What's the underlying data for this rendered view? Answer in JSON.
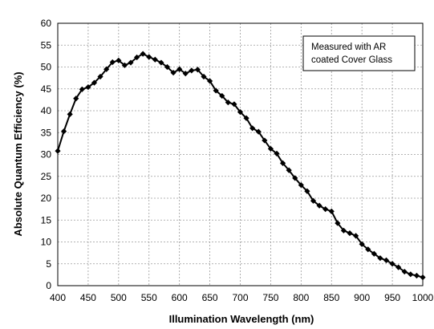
{
  "chart_data": {
    "type": "line",
    "title": "",
    "xlabel": "Illumination Wavelength (nm)",
    "ylabel": "Absolute Quantum Efficiency (%)",
    "xlim": [
      400,
      1000
    ],
    "ylim": [
      0,
      60
    ],
    "xticks": [
      "400",
      "450",
      "500",
      "550",
      "600",
      "650",
      "700",
      "750",
      "800",
      "850",
      "900",
      "950",
      "1000"
    ],
    "yticks": [
      "0",
      "5",
      "10",
      "15",
      "20",
      "25",
      "30",
      "35",
      "40",
      "45",
      "50",
      "55",
      "60"
    ],
    "grid": true,
    "annotation": [
      "Measured with AR",
      "coated Cover Glass"
    ],
    "series": [
      {
        "color": "#000000",
        "marker": "diamond",
        "x": [
          400,
          410,
          420,
          430,
          440,
          450,
          460,
          470,
          480,
          490,
          500,
          510,
          520,
          530,
          540,
          550,
          560,
          570,
          580,
          590,
          600,
          610,
          620,
          630,
          640,
          650,
          660,
          670,
          680,
          690,
          700,
          710,
          720,
          730,
          740,
          750,
          760,
          770,
          780,
          790,
          800,
          810,
          820,
          830,
          840,
          850,
          860,
          870,
          880,
          890,
          900,
          910,
          920,
          930,
          940,
          950,
          960,
          970,
          980,
          990,
          1000
        ],
        "y": [
          30.8,
          35.3,
          39.2,
          42.8,
          44.9,
          45.4,
          46.4,
          47.8,
          49.5,
          51.1,
          51.5,
          50.4,
          51.0,
          52.2,
          53.0,
          52.3,
          51.7,
          51.0,
          50.0,
          48.7,
          49.5,
          48.5,
          49.2,
          49.4,
          47.8,
          46.8,
          44.6,
          43.4,
          41.9,
          41.5,
          39.7,
          38.3,
          36.0,
          35.2,
          33.2,
          31.3,
          30.2,
          28.0,
          26.4,
          24.6,
          23.0,
          21.6,
          19.4,
          18.3,
          17.5,
          17.0,
          14.3,
          12.6,
          12.0,
          11.4,
          9.5,
          8.3,
          7.3,
          6.3,
          5.8,
          5.0,
          4.2,
          3.2,
          2.6,
          2.3,
          1.9
        ]
      }
    ]
  }
}
